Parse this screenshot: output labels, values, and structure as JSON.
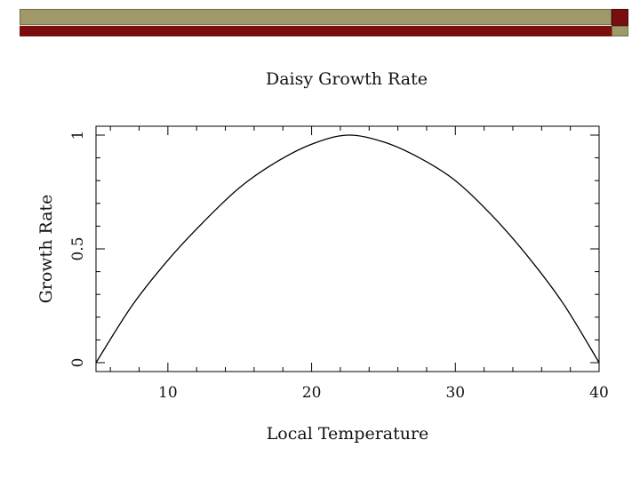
{
  "colors": {
    "banner_olive": "#a09a6a",
    "banner_red": "#7a0e0e",
    "line": "#000000"
  },
  "chart_data": {
    "type": "line",
    "title": "Daisy Growth Rate",
    "xlabel": "Local Temperature",
    "ylabel": "Growth Rate",
    "xlim": [
      5,
      40
    ],
    "ylim": [
      0,
      1
    ],
    "x_ticks": [
      10,
      20,
      30,
      40
    ],
    "x_tick_labels": [
      "10",
      "20",
      "30",
      "40"
    ],
    "y_ticks": [
      0,
      0.5,
      1
    ],
    "y_tick_labels": [
      "0",
      "0.5",
      "1"
    ],
    "grid": false,
    "series": [
      {
        "x": [
          5,
          7.5,
          10,
          12.5,
          15,
          17.5,
          20,
          22.5,
          25,
          27.5,
          30,
          32.5,
          35,
          37.5,
          40
        ],
        "y": [
          0,
          0.25,
          0.45,
          0.62,
          0.77,
          0.88,
          0.96,
          1.0,
          0.97,
          0.9,
          0.8,
          0.65,
          0.47,
          0.26,
          0
        ]
      }
    ]
  }
}
